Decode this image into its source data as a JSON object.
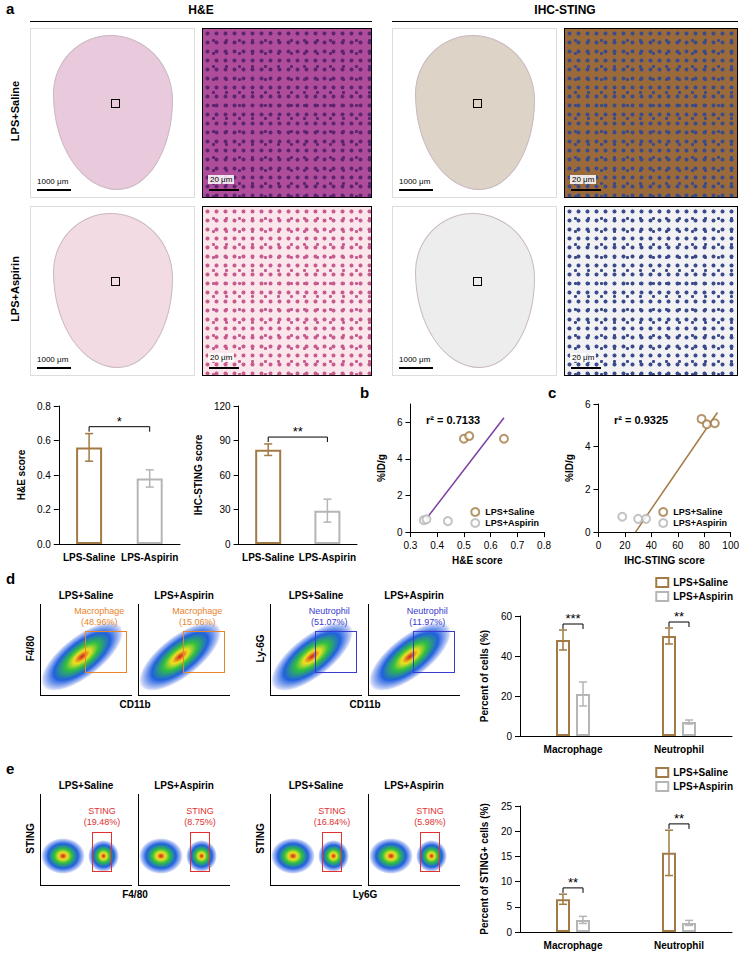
{
  "panel_letters": [
    "a",
    "b",
    "c",
    "d",
    "e"
  ],
  "histology": {
    "columns": [
      "H&E",
      "IHC-STING"
    ],
    "rows": [
      "LPS+Saline",
      "LPS+Aspirin"
    ],
    "scale_bars": {
      "overview": "1000 μm",
      "zoom": "20 μm"
    }
  },
  "flow": [
    {
      "plots": [
        {
          "y_label": "F4/80",
          "x_label": "CD11b",
          "conditions": [
            "LPS+Saline",
            "LPS+Aspirin"
          ],
          "gate": "Macrophage",
          "gate_labels": [
            "(48.96%)",
            "(15.06%)"
          ],
          "color": "#e8842a"
        },
        {
          "y_label": "Ly-6G",
          "x_label": "CD11b",
          "conditions": [
            "LPS+Saline",
            "LPS+Aspirin"
          ],
          "gate": "Neutrophil",
          "gate_labels": [
            "(51.07%)",
            "(11.97%)"
          ],
          "color": "#3a3acf"
        }
      ]
    },
    {
      "plots": [
        {
          "y_label": "STING",
          "x_label": "F4/80",
          "conditions": [
            "LPS+Saline",
            "LPS+Aspirin"
          ],
          "gate": "STING",
          "gate_labels": [
            "(19.48%)",
            "(8.75%)"
          ],
          "color": "#e03030"
        },
        {
          "y_label": "STING",
          "x_label": "Ly6G",
          "conditions": [
            "LPS+Saline",
            "LPS+Aspirin"
          ],
          "gate": "STING",
          "gate_labels": [
            "(16.84%)",
            "(5.98%)"
          ],
          "color": "#e03030"
        }
      ]
    }
  ],
  "chart_data": [
    {
      "type": "bar",
      "categories": [
        "LPS-Saline",
        "LPS-Aspirin"
      ],
      "values": [
        0.56,
        0.38
      ],
      "errors": [
        0.08,
        0.05
      ],
      "colors": [
        "#a27a45",
        "#b5b5b5"
      ],
      "y_label": "H&E score",
      "ylim": [
        0,
        0.8
      ],
      "yticks": [
        {
          "value": 0,
          "label": "0.0"
        },
        0.2,
        0.4,
        0.6,
        0.8
      ],
      "significance": [
        {
          "between": [
            0,
            1
          ],
          "label": "*"
        }
      ]
    },
    {
      "type": "bar",
      "categories": [
        "LPS-Saline",
        "LPS-Aspirin"
      ],
      "values": [
        82,
        29
      ],
      "errors": [
        5,
        10
      ],
      "colors": [
        "#a27a45",
        "#b5b5b5"
      ],
      "y_label": "IHC-STING score",
      "ylim": [
        0,
        120
      ],
      "yticks": [
        0,
        30,
        60,
        90,
        120
      ],
      "significance": [
        {
          "between": [
            0,
            1
          ],
          "label": "**"
        }
      ]
    },
    {
      "type": "scatter",
      "x_label": "H&E score",
      "y_label": "%ID/g",
      "annotation": "r² = 0.7133",
      "legend": "lower right",
      "series": [
        {
          "name": "LPS+Saline",
          "color": "#a27a45",
          "marker": "open circle",
          "x": [
            0.5,
            0.52,
            0.65
          ],
          "values": [
            5.1,
            5.25,
            5.1
          ]
        },
        {
          "name": "LPS+Aspirin",
          "color": "#b5b5b5",
          "marker": "open circle",
          "x": [
            0.35,
            0.36,
            0.44
          ],
          "values": [
            0.65,
            0.7,
            0.6
          ]
        }
      ],
      "fit": {
        "color": "#7b3fa5",
        "x": [
          0.35,
          0.65
        ],
        "values": [
          0.55,
          6.25
        ]
      },
      "xlim": [
        0.3,
        0.8
      ],
      "xticks": [
        0.3,
        0.4,
        0.5,
        0.6,
        0.7,
        0.8
      ],
      "ylim": [
        0,
        7
      ],
      "yticks": [
        0,
        2,
        4,
        6
      ]
    },
    {
      "type": "scatter",
      "x_label": "IHC-STING score",
      "y_label": "%ID/g",
      "annotation": "r² = 0.9325",
      "legend": "lower right",
      "series": [
        {
          "name": "LPS+Saline",
          "color": "#a27a45",
          "marker": "open circle",
          "x": [
            78,
            82,
            88
          ],
          "values": [
            5.3,
            5.05,
            5.1
          ]
        },
        {
          "name": "LPS+Aspirin",
          "color": "#b5b5b5",
          "marker": "open circle",
          "x": [
            18,
            30,
            36
          ],
          "values": [
            0.72,
            0.62,
            0.62
          ]
        }
      ],
      "fit": {
        "color": "#a27a45",
        "x": [
          28,
          90
        ],
        "values": [
          0,
          5.6
        ]
      },
      "xlim": [
        0,
        100
      ],
      "xticks": [
        0,
        20,
        40,
        60,
        80,
        100
      ],
      "ylim": [
        0,
        6
      ],
      "yticks": [
        0,
        2,
        4,
        6
      ]
    },
    {
      "type": "bar",
      "categories": [
        "Macrophage",
        "Neutrophil"
      ],
      "y_label": "Percent of cells (%)",
      "legend": "upper right",
      "series": [
        {
          "name": "LPS+Saline",
          "color": "#a27a45",
          "values": [
            48,
            50
          ],
          "errors": [
            5,
            4
          ]
        },
        {
          "name": "LPS+Aspirin",
          "color": "#b5b5b5",
          "values": [
            21,
            7
          ],
          "errors": [
            6,
            1
          ]
        }
      ],
      "ylim": [
        0,
        60
      ],
      "yticks": [
        0,
        20,
        40,
        60
      ],
      "significance": [
        {
          "category": 0,
          "label": "***"
        },
        {
          "category": 1,
          "label": "**"
        }
      ]
    },
    {
      "type": "bar",
      "categories": [
        "Macrophage",
        "Neutrophil"
      ],
      "y_label": "Percent of STING+ cells (%)",
      "legend": "upper right",
      "series": [
        {
          "name": "LPS+Saline",
          "color": "#a27a45",
          "values": [
            6.5,
            15.7
          ],
          "errors": [
            1,
            4.5
          ]
        },
        {
          "name": "LPS+Aspirin",
          "color": "#b5b5b5",
          "values": [
            2.4,
            1.8
          ],
          "errors": [
            0.7,
            0.5
          ]
        }
      ],
      "ylim": [
        0,
        25
      ],
      "yticks": [
        0,
        5,
        10,
        15,
        20,
        25
      ],
      "significance": [
        {
          "category": 0,
          "label": "**"
        },
        {
          "category": 1,
          "label": "**"
        }
      ]
    }
  ]
}
